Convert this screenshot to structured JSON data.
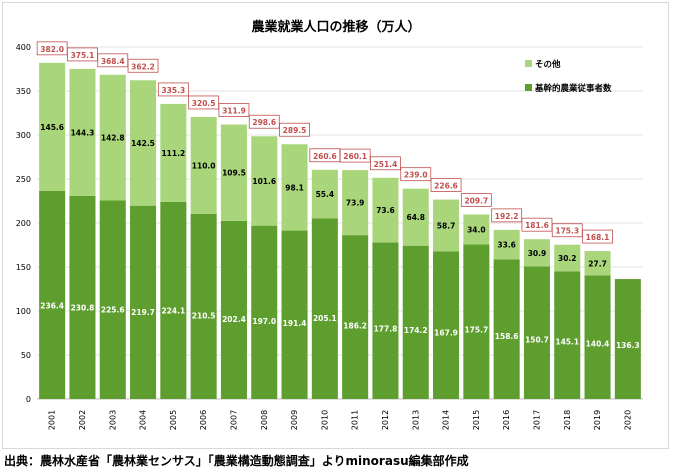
{
  "chart_data": {
    "type": "bar",
    "stacked": true,
    "title": "農業就業人口の推移（万人）",
    "categories": [
      "2001",
      "2002",
      "2003",
      "2004",
      "2005",
      "2006",
      "2007",
      "2008",
      "2009",
      "2010",
      "2011",
      "2012",
      "2013",
      "2014",
      "2015",
      "2016",
      "2017",
      "2018",
      "2019",
      "2020"
    ],
    "series": [
      {
        "name": "基幹的農業従事者数",
        "color": "#5e9e2f",
        "values": [
          236.4,
          230.8,
          225.6,
          219.7,
          224.1,
          210.5,
          202.4,
          197.0,
          191.4,
          205.1,
          186.2,
          177.8,
          174.2,
          167.9,
          175.7,
          158.6,
          150.7,
          145.1,
          140.4,
          136.3
        ]
      },
      {
        "name": "その他",
        "color": "#a9d67b",
        "values": [
          145.6,
          144.3,
          142.8,
          142.5,
          111.2,
          110.0,
          109.5,
          101.6,
          98.1,
          55.4,
          73.9,
          73.6,
          64.8,
          58.7,
          34.0,
          33.6,
          30.9,
          30.2,
          27.7,
          null
        ]
      }
    ],
    "totals": [
      382.0,
      375.1,
      368.4,
      362.2,
      335.3,
      320.5,
      311.9,
      298.6,
      289.5,
      260.6,
      260.1,
      251.4,
      239.0,
      226.6,
      209.7,
      192.2,
      181.6,
      175.3,
      168.1,
      null
    ],
    "ylim": [
      0,
      400
    ],
    "yticks": [
      0,
      50,
      100,
      150,
      200,
      250,
      300,
      350,
      400
    ],
    "legend": "top-right",
    "total_label_color": "#c0504d",
    "grid": true
  },
  "source": "出典：農林水産省「農林業センサス」「農業構造動態調査」よりminorasu編集部作成"
}
